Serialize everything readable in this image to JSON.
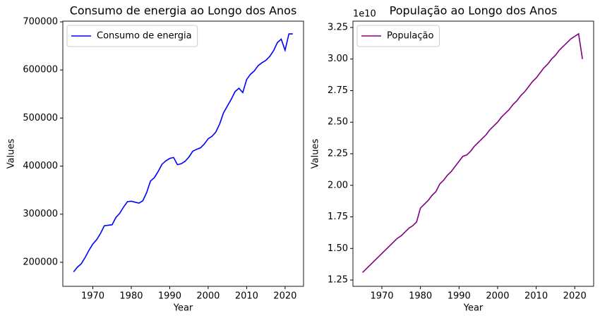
{
  "chart_data": [
    {
      "type": "line",
      "title": "Consumo de energia ao Longo dos Anos",
      "x_label": "Year",
      "y_label": "Values",
      "x": [
        1965,
        1966,
        1967,
        1968,
        1969,
        1970,
        1971,
        1972,
        1973,
        1974,
        1975,
        1976,
        1977,
        1978,
        1979,
        1980,
        1981,
        1982,
        1983,
        1984,
        1985,
        1986,
        1987,
        1988,
        1989,
        1990,
        1991,
        1992,
        1993,
        1994,
        1995,
        1996,
        1997,
        1998,
        1999,
        2000,
        2001,
        2002,
        2003,
        2004,
        2005,
        2006,
        2007,
        2008,
        2009,
        2010,
        2011,
        2012,
        2013,
        2014,
        2015,
        2016,
        2017,
        2018,
        2019,
        2020,
        2021,
        2022
      ],
      "series": [
        {
          "name": "Consumo de energia",
          "color": "#0000ff",
          "values": [
            180000,
            190000,
            197000,
            210000,
            225000,
            238000,
            247000,
            260000,
            276000,
            277000,
            278000,
            293000,
            302000,
            315000,
            326000,
            327000,
            325000,
            323000,
            328000,
            345000,
            369000,
            376000,
            389000,
            404000,
            411000,
            416000,
            418000,
            403000,
            405000,
            410000,
            419000,
            431000,
            435000,
            438000,
            446000,
            457000,
            462000,
            471000,
            488000,
            511000,
            525000,
            539000,
            555000,
            562000,
            553000,
            580000,
            591000,
            598000,
            609000,
            615000,
            620000,
            628000,
            640000,
            657000,
            664000,
            641000,
            675000,
            675000
          ]
        }
      ],
      "xlim": [
        1962.2,
        2024.8
      ],
      "xticks": [
        1970,
        1980,
        1990,
        2000,
        2010,
        2020
      ],
      "ylim": [
        150000,
        701500
      ],
      "yticks": [
        200000,
        300000,
        400000,
        500000,
        600000,
        700000
      ],
      "legend": "upper left"
    },
    {
      "type": "line",
      "title": "População ao Longo dos Anos",
      "x_label": "Year",
      "y_label": "Values",
      "y_offset": "1e10",
      "x": [
        1965,
        1966,
        1967,
        1968,
        1969,
        1970,
        1971,
        1972,
        1973,
        1974,
        1975,
        1976,
        1977,
        1978,
        1979,
        1980,
        1981,
        1982,
        1983,
        1984,
        1985,
        1986,
        1987,
        1988,
        1989,
        1990,
        1991,
        1992,
        1993,
        1994,
        1995,
        1996,
        1997,
        1998,
        1999,
        2000,
        2001,
        2002,
        2003,
        2004,
        2005,
        2006,
        2007,
        2008,
        2009,
        2010,
        2011,
        2012,
        2013,
        2014,
        2015,
        2016,
        2017,
        2018,
        2019,
        2020,
        2021,
        2022
      ],
      "series": [
        {
          "name": "População",
          "color": "#800080",
          "values": [
            13100000000,
            13400000000,
            13700000000,
            14000000000,
            14300000000,
            14600000000,
            14900000000,
            15200000000,
            15500000000,
            15800000000,
            16000000000,
            16300000000,
            16600000000,
            16800000000,
            17100000000,
            18200000000,
            18500000000,
            18800000000,
            19200000000,
            19500000000,
            20100000000,
            20400000000,
            20800000000,
            21100000000,
            21500000000,
            21900000000,
            22300000000,
            22400000000,
            22700000000,
            23100000000,
            23400000000,
            23700000000,
            24000000000,
            24400000000,
            24700000000,
            25000000000,
            25400000000,
            25700000000,
            26000000000,
            26400000000,
            26700000000,
            27100000000,
            27400000000,
            27800000000,
            28200000000,
            28500000000,
            28900000000,
            29300000000,
            29600000000,
            30000000000,
            30300000000,
            30700000000,
            31000000000,
            31300000000,
            31600000000,
            31800000000,
            32000000000,
            30000000000
          ]
        }
      ],
      "xlim": [
        1962.5,
        2024.9
      ],
      "xticks": [
        1970,
        1980,
        1990,
        2000,
        2010,
        2020
      ],
      "ylim": [
        12000000000,
        33000000000
      ],
      "yticks": [
        {
          "value": 12500000000,
          "label": "1.25"
        },
        {
          "value": 15000000000,
          "label": "1.50"
        },
        {
          "value": 17500000000,
          "label": "1.75"
        },
        {
          "value": 20000000000,
          "label": "2.00"
        },
        {
          "value": 22500000000,
          "label": "2.25"
        },
        {
          "value": 25000000000,
          "label": "2.50"
        },
        {
          "value": 27500000000,
          "label": "2.75"
        },
        {
          "value": 30000000000,
          "label": "3.00"
        },
        {
          "value": 32500000000,
          "label": "3.25"
        }
      ],
      "legend": "upper left"
    }
  ]
}
